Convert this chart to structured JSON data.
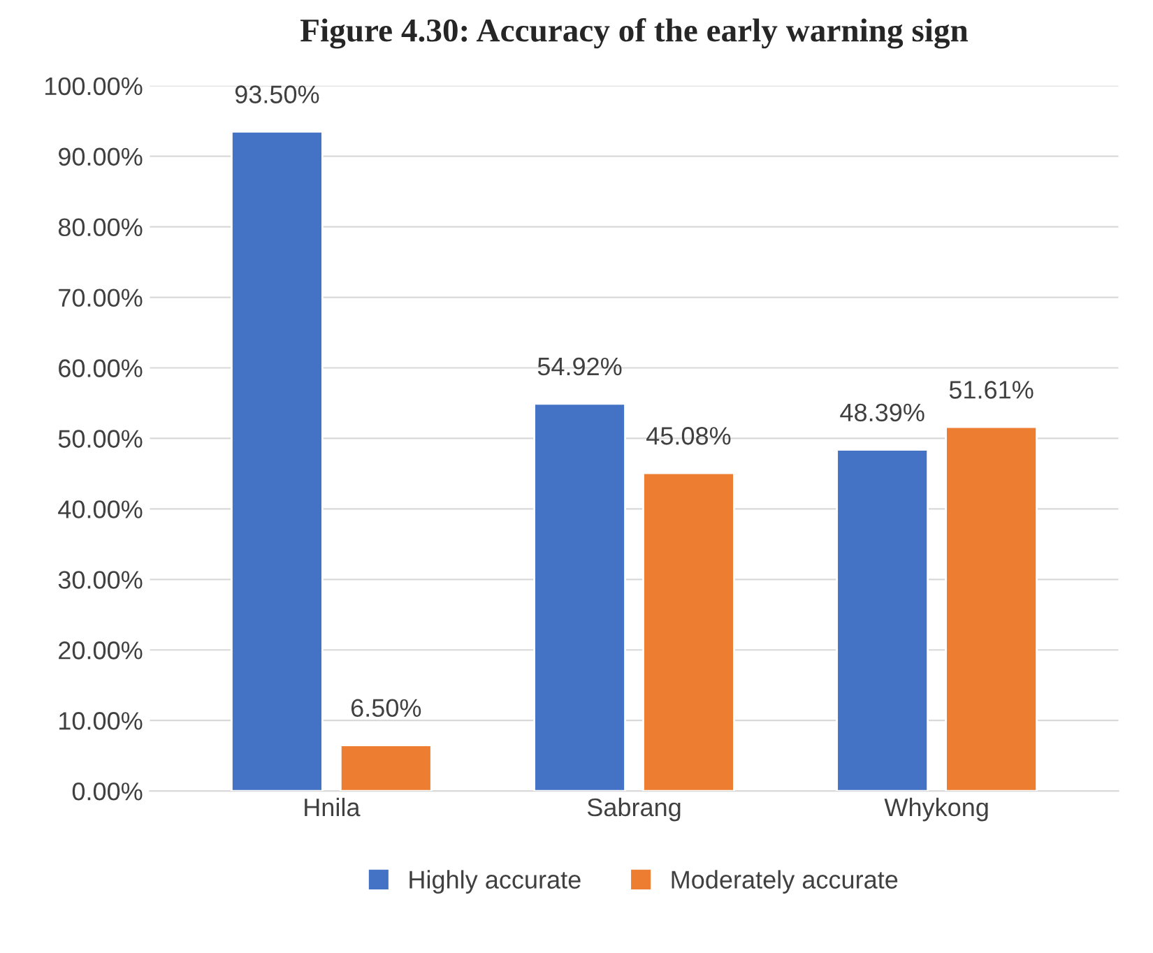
{
  "chart_data": {
    "type": "bar",
    "title": "Figure 4.30: Accuracy of the early warning sign",
    "categories": [
      "Hnila",
      "Sabrang",
      "Whykong"
    ],
    "series": [
      {
        "name": "Highly accurate",
        "color": "#4472c4",
        "values": [
          93.5,
          54.92,
          48.39
        ],
        "value_labels": [
          "93.50%",
          "54.92%",
          "48.39%"
        ]
      },
      {
        "name": "Moderately accurate",
        "color": "#ed7d31",
        "values": [
          6.5,
          45.08,
          51.61
        ],
        "value_labels": [
          "6.50%",
          "45.08%",
          "51.61%"
        ]
      }
    ],
    "ylim": [
      0,
      100
    ],
    "yticks": [
      {
        "value": 0,
        "label": "0.00%"
      },
      {
        "value": 10,
        "label": "10.00%"
      },
      {
        "value": 20,
        "label": "20.00%"
      },
      {
        "value": 30,
        "label": "30.00%"
      },
      {
        "value": 40,
        "label": "40.00%"
      },
      {
        "value": 50,
        "label": "50.00%"
      },
      {
        "value": 60,
        "label": "60.00%"
      },
      {
        "value": 70,
        "label": "70.00%"
      },
      {
        "value": 80,
        "label": "80.00%"
      },
      {
        "value": 90,
        "label": "90.00%"
      },
      {
        "value": 100,
        "label": "100.00%"
      }
    ],
    "grid": "y",
    "legend": "bottom"
  }
}
